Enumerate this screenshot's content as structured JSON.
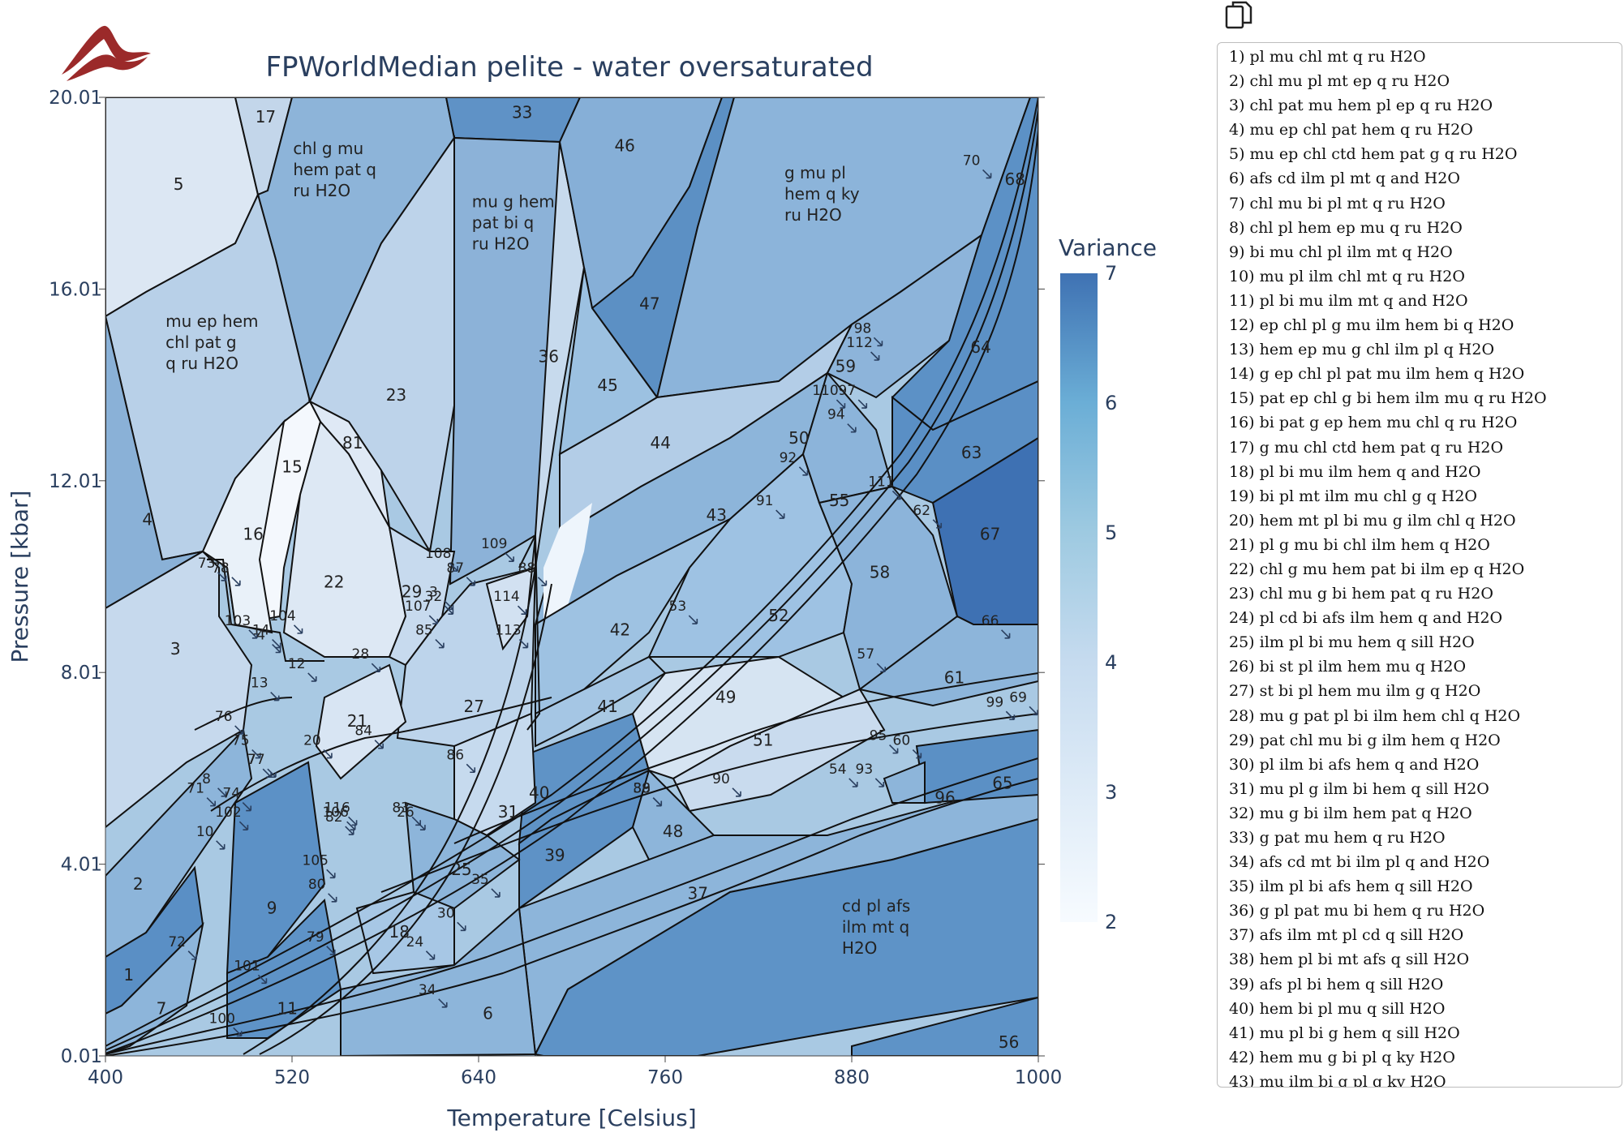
{
  "header": {
    "copy_icon": "copy-icon"
  },
  "chart_data": {
    "type": "heatmap",
    "title": "FPWorldMedian pelite - water oversaturated",
    "xlabel": "Temperature [Celsius]",
    "ylabel": "Pressure [kbar]",
    "xlim": [
      400,
      1000
    ],
    "ylim": [
      0.01,
      20.01
    ],
    "xticks": [
      "400",
      "520",
      "640",
      "760",
      "880",
      "1000"
    ],
    "xtick_values": [
      400,
      520,
      640,
      760,
      880,
      1000
    ],
    "yticks": [
      "0.01",
      "4.01",
      "8.01",
      "12.01",
      "16.01",
      "20.01"
    ],
    "ytick_values": [
      0.01,
      4.01,
      8.01,
      12.01,
      16.01,
      20.01
    ],
    "colorbar": {
      "title": "Variance",
      "ticks": [
        "2",
        "3",
        "4",
        "5",
        "6",
        "7"
      ],
      "range": [
        2,
        7
      ],
      "colors": [
        "#f7fbff",
        "#deebf7",
        "#c6dbef",
        "#9ecae1",
        "#6baed6",
        "#3f72b3"
      ]
    },
    "fields": [
      {
        "label": "1",
        "T": 415,
        "P": 1.7,
        "variance": 6
      },
      {
        "label": "2",
        "T": 421,
        "P": 3.6,
        "variance": 5
      },
      {
        "label": "3",
        "T": 445,
        "P": 8.5,
        "variance": 4
      },
      {
        "label": "4",
        "T": 427,
        "P": 11.2,
        "variance": 5
      },
      {
        "label": "5",
        "T": 447,
        "P": 18.2,
        "variance": 3
      },
      {
        "label": "mu ep hem\nchl pat g\nq ru H2O",
        "T": 470,
        "P": 14.9,
        "variance": 4
      },
      {
        "label": "7",
        "T": 436,
        "P": 1.0,
        "variance": 4
      },
      {
        "label": "9",
        "T": 507,
        "P": 3.1,
        "variance": 5
      },
      {
        "label": "11",
        "T": 517,
        "P": 1.0,
        "variance": 5
      },
      {
        "label": "16",
        "T": 495,
        "P": 10.9,
        "variance": 3
      },
      {
        "label": "15",
        "T": 520,
        "P": 12.3,
        "variance": 2
      },
      {
        "label": "17",
        "T": 503,
        "P": 19.6,
        "variance": 4
      },
      {
        "label": "chl g mu\nhem pat q\nru H2O",
        "T": 552,
        "P": 18.5,
        "variance": 5
      },
      {
        "label": "22",
        "T": 547,
        "P": 9.9,
        "variance": 3
      },
      {
        "label": "23",
        "T": 587,
        "P": 13.8,
        "variance": 4
      },
      {
        "label": "81",
        "T": 559,
        "P": 12.8,
        "variance": 3
      },
      {
        "label": "21",
        "T": 562,
        "P": 7.0,
        "variance": 4
      },
      {
        "label": "29",
        "T": 597,
        "P": 9.7,
        "variance": 4
      },
      {
        "label": "27",
        "T": 637,
        "P": 7.3,
        "variance": 3
      },
      {
        "label": "31",
        "T": 659,
        "P": 5.1,
        "variance": 3
      },
      {
        "label": "25",
        "T": 629,
        "P": 3.9,
        "variance": 4
      },
      {
        "label": "18",
        "T": 589,
        "P": 2.6,
        "variance": 5
      },
      {
        "label": "6",
        "T": 646,
        "P": 0.9,
        "variance": 5
      },
      {
        "label": "mu g hem\npat bi q\nru H2O",
        "T": 667,
        "P": 17.4,
        "variance": 5
      },
      {
        "label": "33",
        "T": 668,
        "P": 19.7,
        "variance": 6
      },
      {
        "label": "36",
        "T": 685,
        "P": 14.6,
        "variance": 4
      },
      {
        "label": "46",
        "T": 734,
        "P": 19.0,
        "variance": 5
      },
      {
        "label": "47",
        "T": 750,
        "P": 15.7,
        "variance": 6
      },
      {
        "label": "45",
        "T": 723,
        "P": 14.0,
        "variance": 5
      },
      {
        "label": "44",
        "T": 757,
        "P": 12.8,
        "variance": 4
      },
      {
        "label": "43",
        "T": 793,
        "P": 11.3,
        "variance": 5
      },
      {
        "label": "42",
        "T": 731,
        "P": 8.9,
        "variance": 5
      },
      {
        "label": "41",
        "T": 723,
        "P": 7.3,
        "variance": 5
      },
      {
        "label": "40",
        "T": 679,
        "P": 5.5,
        "variance": 6
      },
      {
        "label": "39",
        "T": 689,
        "P": 4.2,
        "variance": 6
      },
      {
        "label": "37",
        "T": 781,
        "P": 3.4,
        "variance": 5
      },
      {
        "label": "48",
        "T": 765,
        "P": 4.7,
        "variance": 4
      },
      {
        "label": "49",
        "T": 799,
        "P": 7.5,
        "variance": 3
      },
      {
        "label": "51",
        "T": 823,
        "P": 6.6,
        "variance": 3
      },
      {
        "label": "52",
        "T": 833,
        "P": 9.2,
        "variance": 5
      },
      {
        "label": "g mu pl\nhem q ky\nru H2O",
        "T": 868,
        "P": 18.0,
        "variance": 5
      },
      {
        "label": "59",
        "T": 876,
        "P": 14.4,
        "variance": 5
      },
      {
        "label": "50",
        "T": 846,
        "P": 12.9,
        "variance": 4
      },
      {
        "label": "55",
        "T": 872,
        "P": 11.6,
        "variance": 5
      },
      {
        "label": "58",
        "T": 898,
        "P": 10.1,
        "variance": 5
      },
      {
        "label": "64",
        "T": 963,
        "P": 14.8,
        "variance": 6
      },
      {
        "label": "63",
        "T": 957,
        "P": 12.6,
        "variance": 6
      },
      {
        "label": "67",
        "T": 969,
        "P": 10.9,
        "variance": 7
      },
      {
        "label": "61",
        "T": 946,
        "P": 7.9,
        "variance": 5
      },
      {
        "label": "65",
        "T": 977,
        "P": 5.7,
        "variance": 6
      },
      {
        "label": "96",
        "T": 940,
        "P": 5.4,
        "variance": 5
      },
      {
        "label": "cd pl afs\nilm mt q\nH2O",
        "T": 905,
        "P": 2.7,
        "variance": 6
      },
      {
        "label": "56",
        "T": 981,
        "P": 0.3,
        "variance": 6
      },
      {
        "label": "68",
        "T": 985,
        "P": 18.3,
        "variance": 6
      }
    ],
    "small_labels": [
      {
        "label": "8",
        "T": 465,
        "P": 5.8
      },
      {
        "label": "10",
        "T": 464,
        "P": 4.7
      },
      {
        "label": "12",
        "T": 523,
        "P": 8.2
      },
      {
        "label": "13",
        "T": 499,
        "P": 7.8
      },
      {
        "label": "14",
        "T": 500,
        "P": 8.9
      },
      {
        "label": "20",
        "T": 533,
        "P": 6.6
      },
      {
        "label": "24",
        "T": 599,
        "P": 2.4
      },
      {
        "label": "26",
        "T": 593,
        "P": 5.1
      },
      {
        "label": "28",
        "T": 564,
        "P": 8.4
      },
      {
        "label": "30",
        "T": 619,
        "P": 3.0
      },
      {
        "label": "32",
        "T": 611,
        "P": 9.6
      },
      {
        "label": "34",
        "T": 607,
        "P": 1.4
      },
      {
        "label": "35",
        "T": 641,
        "P": 3.7
      },
      {
        "label": "38",
        "T": 745,
        "P": 5.6
      },
      {
        "label": "53",
        "T": 768,
        "P": 9.4
      },
      {
        "label": "54",
        "T": 871,
        "P": 6.0
      },
      {
        "label": "57",
        "T": 889,
        "P": 8.4
      },
      {
        "label": "60",
        "T": 912,
        "P": 6.6
      },
      {
        "label": "62",
        "T": 925,
        "P": 11.4
      },
      {
        "label": "66",
        "T": 969,
        "P": 9.1
      },
      {
        "label": "69",
        "T": 987,
        "P": 7.5
      },
      {
        "label": "70",
        "T": 957,
        "P": 18.7
      },
      {
        "label": "71",
        "T": 458,
        "P": 5.6
      },
      {
        "label": "72",
        "T": 446,
        "P": 2.4
      },
      {
        "label": "73",
        "T": 465,
        "P": 10.3
      },
      {
        "label": "74",
        "T": 481,
        "P": 5.5
      },
      {
        "label": "75",
        "T": 487,
        "P": 6.6
      },
      {
        "label": "76",
        "T": 476,
        "P": 7.1
      },
      {
        "label": "77",
        "T": 497,
        "P": 6.2
      },
      {
        "label": "78",
        "T": 474,
        "P": 10.2
      },
      {
        "label": "79",
        "T": 535,
        "P": 2.5
      },
      {
        "label": "80",
        "T": 536,
        "P": 3.6
      },
      {
        "label": "82",
        "T": 547,
        "P": 5.0
      },
      {
        "label": "83",
        "T": 590,
        "P": 5.2
      },
      {
        "label": "84",
        "T": 566,
        "P": 6.8
      },
      {
        "label": "85",
        "T": 605,
        "P": 8.9
      },
      {
        "label": "86",
        "T": 625,
        "P": 6.3
      },
      {
        "label": "87",
        "T": 625,
        "P": 10.2
      },
      {
        "label": "88",
        "T": 671,
        "P": 10.2
      },
      {
        "label": "89",
        "T": 745,
        "P": 5.6
      },
      {
        "label": "90",
        "T": 796,
        "P": 5.8
      },
      {
        "label": "91",
        "T": 824,
        "P": 11.6
      },
      {
        "label": "92",
        "T": 839,
        "P": 12.5
      },
      {
        "label": "93",
        "T": 888,
        "P": 6.0
      },
      {
        "label": "94",
        "T": 870,
        "P": 13.4
      },
      {
        "label": "95",
        "T": 897,
        "P": 6.7
      },
      {
        "label": "97",
        "T": 877,
        "P": 13.9
      },
      {
        "label": "98",
        "T": 887,
        "P": 15.2
      },
      {
        "label": "99",
        "T": 972,
        "P": 7.4
      },
      {
        "label": "100",
        "T": 475,
        "P": 0.8
      },
      {
        "label": "101",
        "T": 491,
        "P": 1.9
      },
      {
        "label": "102",
        "T": 479,
        "P": 5.1
      },
      {
        "label": "103",
        "T": 485,
        "P": 9.1
      },
      {
        "label": "104",
        "T": 514,
        "P": 9.2
      },
      {
        "label": "105",
        "T": 535,
        "P": 4.1
      },
      {
        "label": "106",
        "T": 548,
        "P": 5.1
      },
      {
        "label": "107",
        "T": 601,
        "P": 9.4
      },
      {
        "label": "108",
        "T": 614,
        "P": 10.5
      },
      {
        "label": "109",
        "T": 650,
        "P": 10.7
      },
      {
        "label": "110",
        "T": 863,
        "P": 13.9
      },
      {
        "label": "111",
        "T": 899,
        "P": 12.0
      },
      {
        "label": "112",
        "T": 885,
        "P": 14.9
      },
      {
        "label": "113",
        "T": 659,
        "P": 8.9
      },
      {
        "label": "114",
        "T": 658,
        "P": 9.6
      },
      {
        "label": "4",
        "T": 500,
        "P": 8.8
      },
      {
        "label": "116",
        "T": 549,
        "P": 5.2
      },
      {
        "label": "3",
        "T": 611,
        "P": 9.7
      },
      {
        "label": "7",
        "T": 494,
        "P": 6.2
      }
    ]
  },
  "assemblages": [
    "1) pl mu chl mt q ru H2O",
    "2) chl mu pl mt ep q ru H2O",
    "3) chl pat mu hem pl ep q ru H2O",
    "4) mu ep chl pat hem q ru H2O",
    "5) mu ep chl ctd hem pat g q ru H2O",
    "6) afs cd ilm pl mt q and H2O",
    "7) chl mu bi pl mt q ru H2O",
    "8) chl pl hem ep mu q ru H2O",
    "9) bi mu chl pl ilm mt q H2O",
    "10) mu pl ilm chl mt q ru H2O",
    "11) pl bi mu ilm mt q and H2O",
    "12) ep chl pl g mu ilm hem bi q H2O",
    "13) hem ep mu g chl ilm pl q H2O",
    "14) g ep chl pl pat mu ilm hem q H2O",
    "15) pat ep chl g bi hem ilm mu q ru H2O",
    "16) bi pat g ep hem mu chl q ru H2O",
    "17) g mu chl ctd hem pat q ru H2O",
    "18) pl bi mu ilm hem q and H2O",
    "19) bi pl mt ilm mu chl g q H2O",
    "20) hem mt pl bi mu g ilm chl q H2O",
    "21) pl g mu bi chl ilm hem q H2O",
    "22) chl g mu hem pat bi ilm ep q H2O",
    "23) chl mu g bi hem pat q ru H2O",
    "24) pl cd bi afs ilm hem q and H2O",
    "25) ilm pl bi mu hem q sill H2O",
    "26) bi st pl ilm hem mu q H2O",
    "27) st bi pl hem mu ilm g q H2O",
    "28) mu g pat pl bi ilm hem chl q H2O",
    "29) pat chl mu bi g ilm hem q H2O",
    "30) pl ilm bi afs hem q and H2O",
    "31) mu pl g ilm bi hem q sill H2O",
    "32) mu g bi ilm hem pat q H2O",
    "33) g pat mu hem q ru H2O",
    "34) afs cd mt bi ilm pl q and H2O",
    "35) ilm pl bi afs hem q sill H2O",
    "36) g pl pat mu bi hem q ru H2O",
    "37) afs ilm mt pl cd q sill H2O",
    "38) hem pl bi mt afs q sill H2O",
    "39) afs pl bi hem q sill H2O",
    "40) hem bi pl mu q sill H2O",
    "41) mu pl bi g hem q sill H2O",
    "42) hem mu g bi pl q ky H2O",
    "43) mu ilm bi g pl q ky H2O"
  ]
}
